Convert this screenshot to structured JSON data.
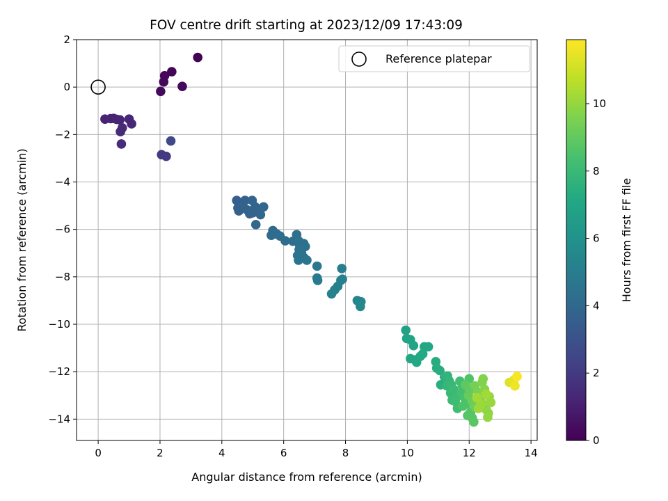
{
  "chart_data": {
    "type": "scatter",
    "title": "FOV centre drift starting at 2023/12/09 17:43:09",
    "xlabel": "Angular distance from reference (arcmin)",
    "ylabel": "Rotation from reference (arcmin)",
    "xlim": [
      -0.7,
      14.2
    ],
    "ylim": [
      -14.9,
      2.0
    ],
    "xticks": [
      0,
      2,
      4,
      6,
      8,
      10,
      12,
      14
    ],
    "yticks": [
      2,
      0,
      -2,
      -4,
      -6,
      -8,
      -10,
      -12,
      -14
    ],
    "grid": true,
    "legend_position": "upper right",
    "reference": {
      "label": "Reference platepar",
      "x": 0.0,
      "y": 0.0
    },
    "colorbar": {
      "label": "Hours from first FF file",
      "colormap": "viridis",
      "range": [
        0,
        11.9
      ],
      "ticks": [
        0,
        2,
        4,
        6,
        8,
        10
      ]
    },
    "points": [
      {
        "x": 3.22,
        "y": 1.25,
        "h": 0.05
      },
      {
        "x": 2.38,
        "y": 0.65,
        "h": 0.1
      },
      {
        "x": 2.15,
        "y": 0.48,
        "h": 0.15
      },
      {
        "x": 2.12,
        "y": 0.22,
        "h": 0.2
      },
      {
        "x": 2.72,
        "y": 0.03,
        "h": 0.25
      },
      {
        "x": 2.02,
        "y": -0.18,
        "h": 0.3
      },
      {
        "x": 0.22,
        "y": -1.35,
        "h": 1.15
      },
      {
        "x": 0.4,
        "y": -1.33,
        "h": 1.2
      },
      {
        "x": 0.5,
        "y": -1.32,
        "h": 1.2
      },
      {
        "x": 0.6,
        "y": -1.36,
        "h": 1.25
      },
      {
        "x": 0.7,
        "y": -1.38,
        "h": 1.25
      },
      {
        "x": 1.0,
        "y": -1.35,
        "h": 1.3
      },
      {
        "x": 1.08,
        "y": -1.55,
        "h": 1.35
      },
      {
        "x": 0.78,
        "y": -1.72,
        "h": 1.4
      },
      {
        "x": 0.72,
        "y": -1.88,
        "h": 1.45
      },
      {
        "x": 0.75,
        "y": -2.4,
        "h": 1.5
      },
      {
        "x": 2.05,
        "y": -2.85,
        "h": 2.0
      },
      {
        "x": 2.2,
        "y": -2.92,
        "h": 2.05
      },
      {
        "x": 2.35,
        "y": -2.27,
        "h": 2.6
      },
      {
        "x": 4.48,
        "y": -4.78,
        "h": 3.6
      },
      {
        "x": 4.6,
        "y": -4.9,
        "h": 3.6
      },
      {
        "x": 4.75,
        "y": -4.78,
        "h": 3.65
      },
      {
        "x": 4.52,
        "y": -5.1,
        "h": 3.65
      },
      {
        "x": 4.55,
        "y": -5.22,
        "h": 3.7
      },
      {
        "x": 4.68,
        "y": -5.02,
        "h": 3.7
      },
      {
        "x": 4.82,
        "y": -5.18,
        "h": 3.75
      },
      {
        "x": 4.9,
        "y": -5.34,
        "h": 3.75
      },
      {
        "x": 5.0,
        "y": -5.3,
        "h": 3.8
      },
      {
        "x": 4.98,
        "y": -4.78,
        "h": 3.8
      },
      {
        "x": 5.08,
        "y": -5.05,
        "h": 3.85
      },
      {
        "x": 5.18,
        "y": -5.22,
        "h": 3.85
      },
      {
        "x": 5.25,
        "y": -5.38,
        "h": 3.9
      },
      {
        "x": 5.35,
        "y": -5.05,
        "h": 3.9
      },
      {
        "x": 5.1,
        "y": -5.8,
        "h": 3.95
      },
      {
        "x": 5.65,
        "y": -6.05,
        "h": 4.1
      },
      {
        "x": 5.7,
        "y": -6.15,
        "h": 4.12
      },
      {
        "x": 5.6,
        "y": -6.25,
        "h": 4.15
      },
      {
        "x": 5.78,
        "y": -6.2,
        "h": 4.18
      },
      {
        "x": 5.88,
        "y": -6.28,
        "h": 4.2
      },
      {
        "x": 6.05,
        "y": -6.48,
        "h": 4.25
      },
      {
        "x": 6.3,
        "y": -6.5,
        "h": 4.3
      },
      {
        "x": 6.42,
        "y": -6.22,
        "h": 4.35
      },
      {
        "x": 6.48,
        "y": -6.48,
        "h": 4.38
      },
      {
        "x": 6.52,
        "y": -6.68,
        "h": 4.4
      },
      {
        "x": 6.65,
        "y": -6.6,
        "h": 4.42
      },
      {
        "x": 6.7,
        "y": -6.72,
        "h": 4.45
      },
      {
        "x": 6.5,
        "y": -6.85,
        "h": 4.48
      },
      {
        "x": 6.58,
        "y": -7.0,
        "h": 4.5
      },
      {
        "x": 6.45,
        "y": -7.1,
        "h": 4.52
      },
      {
        "x": 6.48,
        "y": -7.3,
        "h": 4.55
      },
      {
        "x": 6.66,
        "y": -7.2,
        "h": 4.58
      },
      {
        "x": 6.75,
        "y": -7.3,
        "h": 4.6
      },
      {
        "x": 7.08,
        "y": -7.55,
        "h": 4.75
      },
      {
        "x": 7.08,
        "y": -8.05,
        "h": 4.8
      },
      {
        "x": 7.1,
        "y": -8.15,
        "h": 4.85
      },
      {
        "x": 7.88,
        "y": -7.65,
        "h": 5.05
      },
      {
        "x": 7.85,
        "y": -8.15,
        "h": 5.1
      },
      {
        "x": 7.9,
        "y": -8.1,
        "h": 5.12
      },
      {
        "x": 7.75,
        "y": -8.4,
        "h": 5.15
      },
      {
        "x": 7.65,
        "y": -8.55,
        "h": 5.2
      },
      {
        "x": 7.55,
        "y": -8.72,
        "h": 5.22
      },
      {
        "x": 8.38,
        "y": -9.0,
        "h": 5.45
      },
      {
        "x": 8.5,
        "y": -9.05,
        "h": 5.48
      },
      {
        "x": 8.48,
        "y": -9.25,
        "h": 5.5
      },
      {
        "x": 9.95,
        "y": -10.25,
        "h": 6.8
      },
      {
        "x": 9.98,
        "y": -10.6,
        "h": 6.85
      },
      {
        "x": 10.1,
        "y": -10.65,
        "h": 6.9
      },
      {
        "x": 10.2,
        "y": -10.9,
        "h": 6.95
      },
      {
        "x": 10.55,
        "y": -10.95,
        "h": 7.0
      },
      {
        "x": 10.68,
        "y": -10.95,
        "h": 7.02
      },
      {
        "x": 10.1,
        "y": -11.45,
        "h": 7.05
      },
      {
        "x": 10.25,
        "y": -11.5,
        "h": 7.1
      },
      {
        "x": 10.3,
        "y": -11.6,
        "h": 7.12
      },
      {
        "x": 10.42,
        "y": -11.35,
        "h": 7.15
      },
      {
        "x": 10.5,
        "y": -11.25,
        "h": 7.18
      },
      {
        "x": 10.92,
        "y": -11.58,
        "h": 7.3
      },
      {
        "x": 10.95,
        "y": -11.85,
        "h": 7.35
      },
      {
        "x": 11.05,
        "y": -11.95,
        "h": 7.4
      },
      {
        "x": 11.08,
        "y": -12.55,
        "h": 7.45
      },
      {
        "x": 11.2,
        "y": -12.22,
        "h": 7.6
      },
      {
        "x": 11.3,
        "y": -12.18,
        "h": 7.7
      },
      {
        "x": 11.35,
        "y": -12.38,
        "h": 7.8
      },
      {
        "x": 11.28,
        "y": -12.6,
        "h": 7.85
      },
      {
        "x": 11.42,
        "y": -12.55,
        "h": 7.9
      },
      {
        "x": 11.4,
        "y": -12.9,
        "h": 7.95
      },
      {
        "x": 11.5,
        "y": -12.75,
        "h": 8.0
      },
      {
        "x": 11.45,
        "y": -13.2,
        "h": 8.05
      },
      {
        "x": 11.6,
        "y": -13.05,
        "h": 8.1
      },
      {
        "x": 11.55,
        "y": -13.25,
        "h": 8.15
      },
      {
        "x": 11.62,
        "y": -13.55,
        "h": 8.2
      },
      {
        "x": 11.7,
        "y": -12.4,
        "h": 8.25
      },
      {
        "x": 11.78,
        "y": -12.6,
        "h": 8.3
      },
      {
        "x": 11.75,
        "y": -12.9,
        "h": 8.35
      },
      {
        "x": 11.85,
        "y": -13.1,
        "h": 8.4
      },
      {
        "x": 11.92,
        "y": -13.35,
        "h": 8.5
      },
      {
        "x": 11.8,
        "y": -13.45,
        "h": 8.55
      },
      {
        "x": 12.0,
        "y": -12.3,
        "h": 8.6
      },
      {
        "x": 12.05,
        "y": -13.7,
        "h": 8.65
      },
      {
        "x": 11.95,
        "y": -13.85,
        "h": 8.7
      },
      {
        "x": 12.1,
        "y": -13.95,
        "h": 8.75
      },
      {
        "x": 12.15,
        "y": -14.12,
        "h": 8.8
      },
      {
        "x": 11.88,
        "y": -12.55,
        "h": 8.9
      },
      {
        "x": 12.02,
        "y": -12.78,
        "h": 9.0
      },
      {
        "x": 11.98,
        "y": -13.0,
        "h": 9.1
      },
      {
        "x": 12.1,
        "y": -13.25,
        "h": 9.2
      },
      {
        "x": 12.2,
        "y": -13.5,
        "h": 9.3
      },
      {
        "x": 12.18,
        "y": -12.6,
        "h": 9.4
      },
      {
        "x": 12.28,
        "y": -12.85,
        "h": 9.5
      },
      {
        "x": 12.35,
        "y": -13.2,
        "h": 9.55
      },
      {
        "x": 12.42,
        "y": -12.45,
        "h": 9.6
      },
      {
        "x": 12.45,
        "y": -12.3,
        "h": 9.65
      },
      {
        "x": 12.5,
        "y": -12.75,
        "h": 9.7
      },
      {
        "x": 12.4,
        "y": -13.05,
        "h": 9.75
      },
      {
        "x": 12.5,
        "y": -13.4,
        "h": 9.8
      },
      {
        "x": 12.55,
        "y": -13.6,
        "h": 9.85
      },
      {
        "x": 12.62,
        "y": -13.75,
        "h": 9.9
      },
      {
        "x": 12.6,
        "y": -13.92,
        "h": 9.95
      },
      {
        "x": 12.65,
        "y": -13.05,
        "h": 10.0
      },
      {
        "x": 12.7,
        "y": -13.3,
        "h": 10.05
      },
      {
        "x": 12.3,
        "y": -13.55,
        "h": 10.1
      },
      {
        "x": 12.38,
        "y": -13.38,
        "h": 10.15
      },
      {
        "x": 12.25,
        "y": -13.1,
        "h": 10.2
      },
      {
        "x": 12.55,
        "y": -12.95,
        "h": 10.25
      },
      {
        "x": 13.3,
        "y": -12.45,
        "h": 11.3
      },
      {
        "x": 13.45,
        "y": -12.35,
        "h": 11.5
      },
      {
        "x": 13.48,
        "y": -12.6,
        "h": 11.6
      },
      {
        "x": 13.55,
        "y": -12.2,
        "h": 11.8
      }
    ]
  }
}
